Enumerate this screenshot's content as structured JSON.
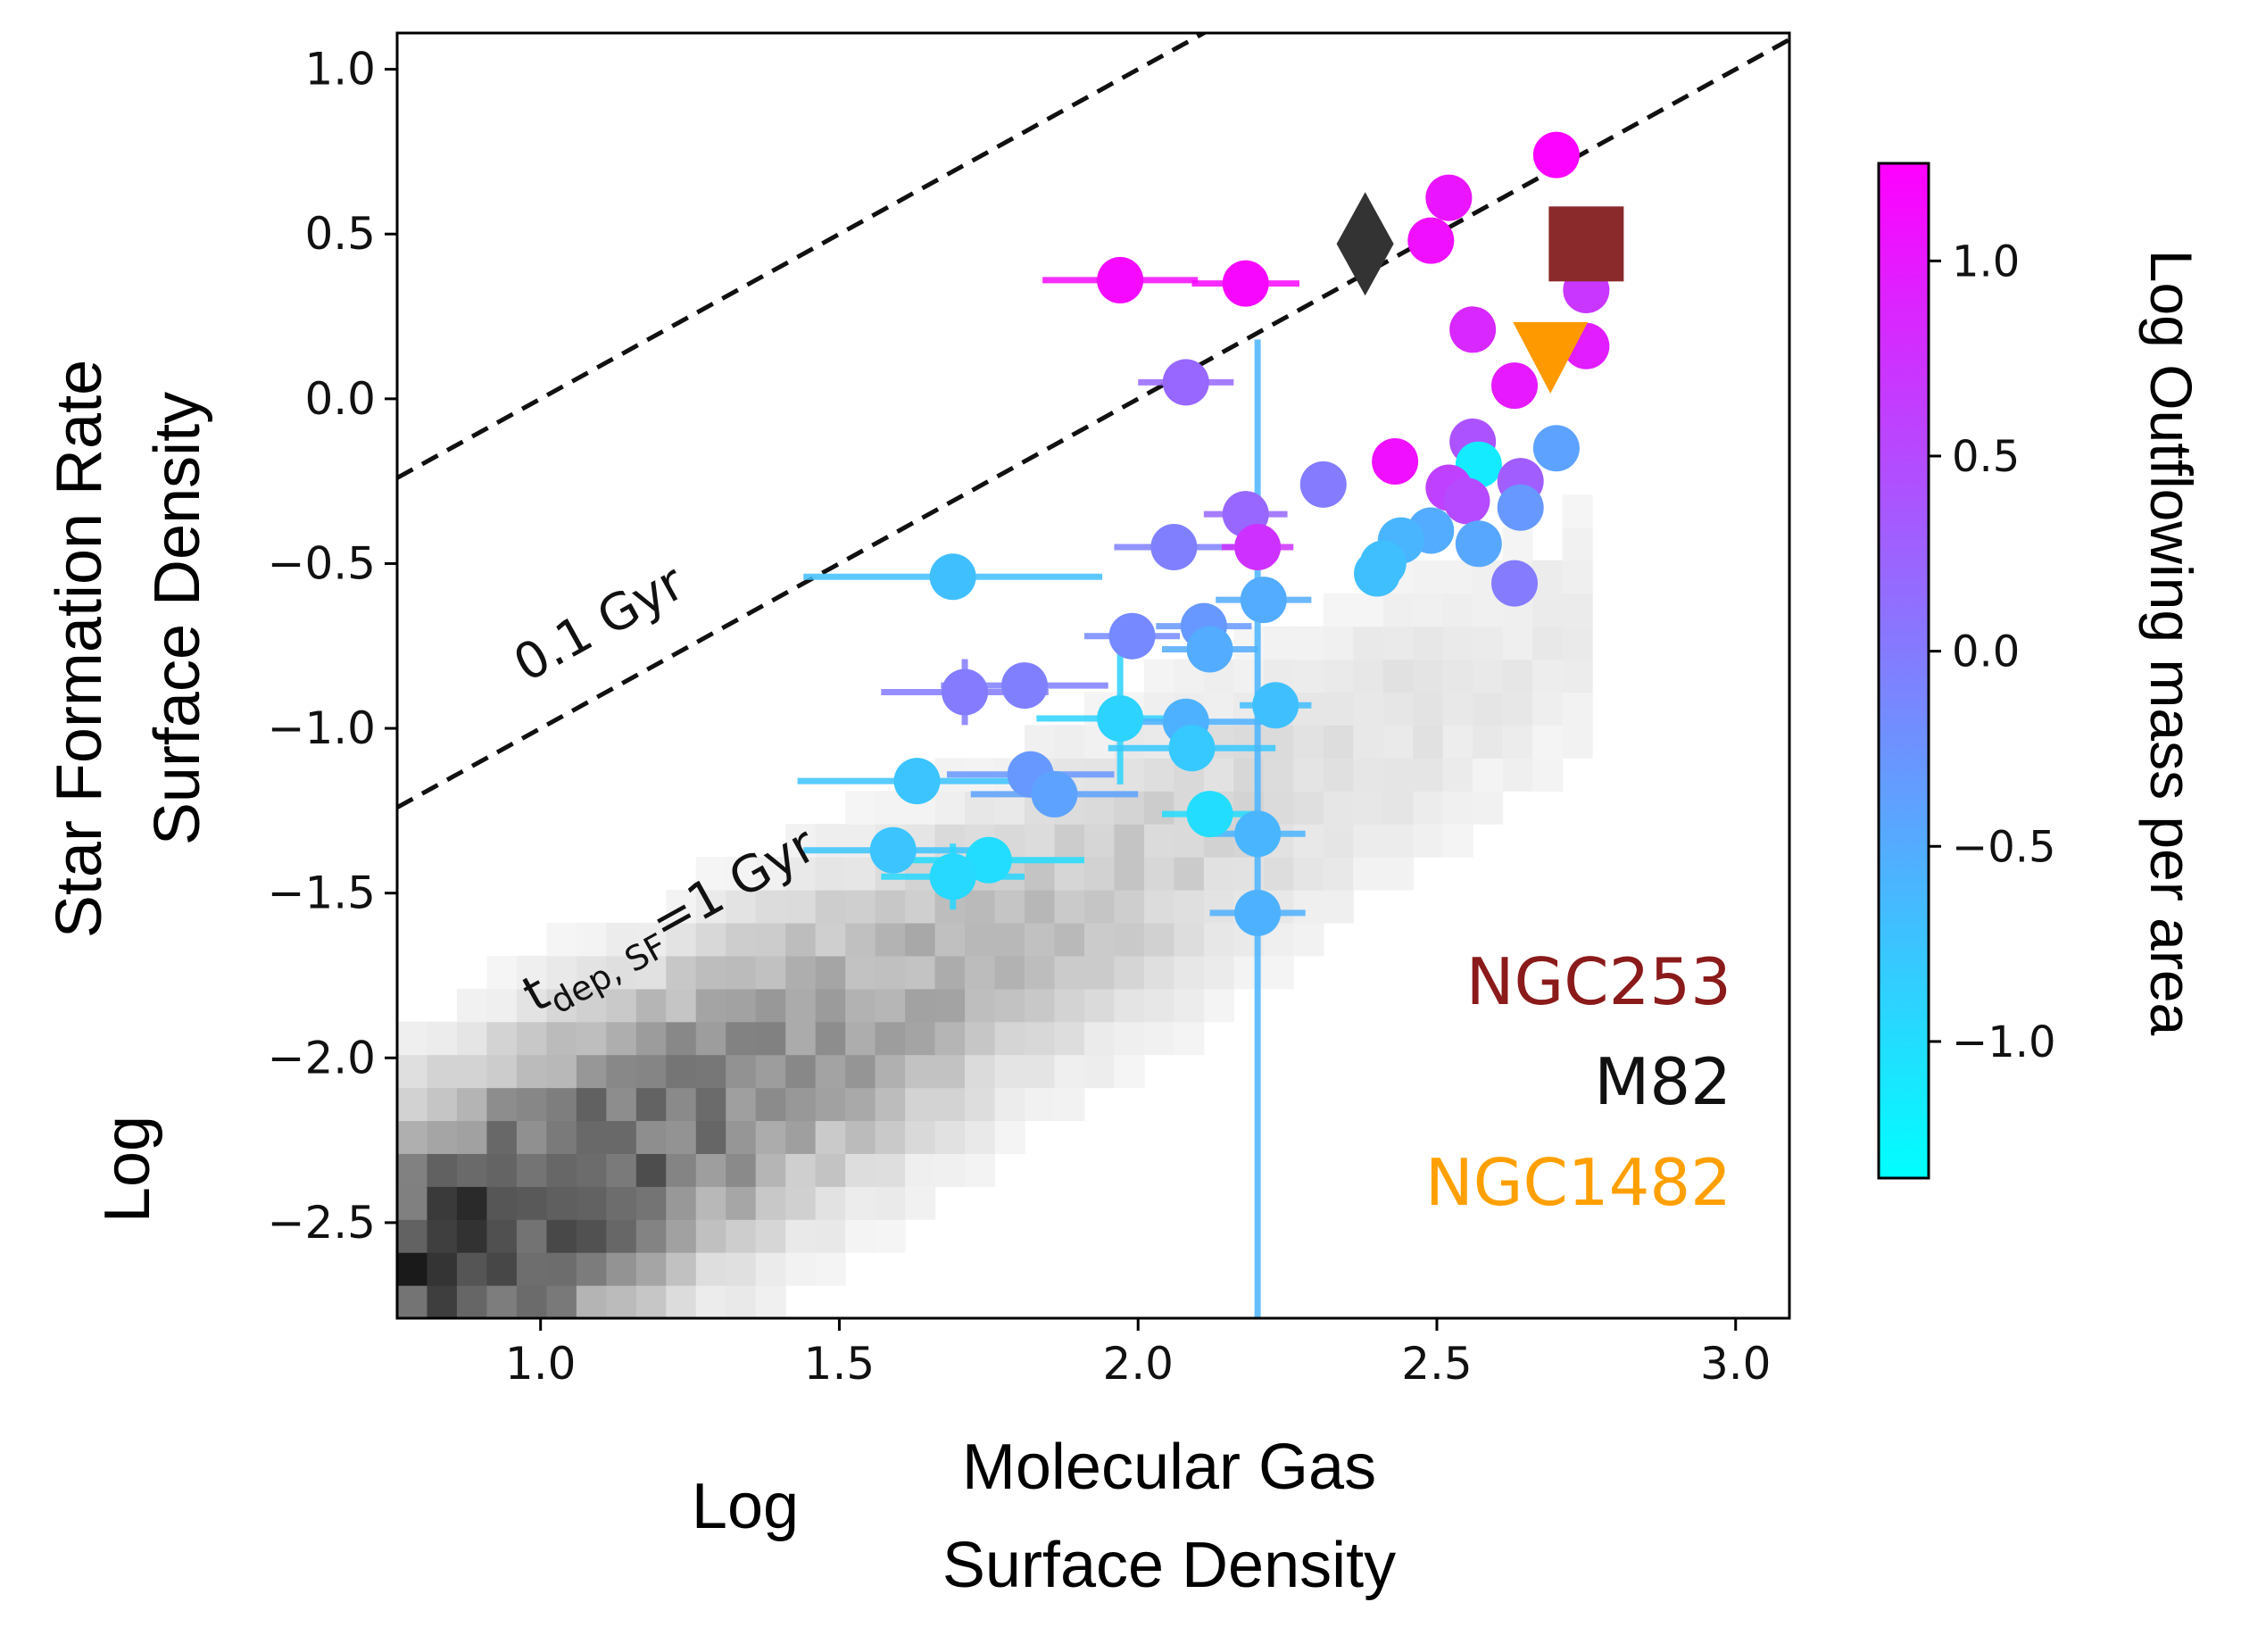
{
  "chart_data": {
    "type": "scatter",
    "xlabel": [
      "Log",
      "Molecular Gas",
      "Surface Density"
    ],
    "ylabel": [
      "Log",
      "Star Formation Rate",
      "Surface Density"
    ],
    "xlim": [
      0.76,
      3.09
    ],
    "ylim": [
      -2.79,
      1.11
    ],
    "xticks": [
      1.0,
      1.5,
      2.0,
      2.5,
      3.0
    ],
    "yticks": [
      1.0,
      0.5,
      0.0,
      -0.5,
      -1.0,
      -1.5,
      -2.0,
      -2.5
    ],
    "xticklabels": [
      "1.0",
      "1.5",
      "2.0",
      "2.5",
      "3.0"
    ],
    "yticklabels": [
      "1.0",
      "0.5",
      "0.0",
      "−0.5",
      "−1.0",
      "−1.5",
      "−2.0",
      "−2.5"
    ],
    "grid": false,
    "colorbar": {
      "label": "Log Outflowing mass per area",
      "range": [
        -1.35,
        1.25
      ],
      "ticks": [
        1.0,
        0.5,
        0.0,
        -0.5,
        -1.0
      ],
      "ticklabels": [
        "1.0",
        "0.5",
        "0.0",
        "−0.5",
        "−1.0"
      ],
      "colormap": "cool",
      "low_color": "#00ffff",
      "high_color": "#ff00ff"
    },
    "depletion_lines": [
      {
        "label": "0.1 Gyr",
        "offset": -1.0
      },
      {
        "label_main": "t",
        "label_sub": "dep, SF",
        "label_rest": "=1 Gyr",
        "offset": -2.0
      }
    ],
    "galaxies": [
      {
        "name": "NGC253",
        "marker": "square",
        "x": 2.75,
        "y": 0.47,
        "color": "#8b2a2a"
      },
      {
        "name": "M82",
        "marker": "diamond",
        "x": 2.38,
        "y": 0.47,
        "color": "#333333"
      },
      {
        "name": "NGC1482",
        "marker": "triangle-down",
        "x": 2.69,
        "y": 0.13,
        "color": "#ff9900"
      }
    ],
    "points": [
      {
        "x": 2.7,
        "y": 0.74,
        "c": 1.22
      },
      {
        "x": 2.52,
        "y": 0.61,
        "c": 1.05
      },
      {
        "x": 2.49,
        "y": 0.48,
        "c": 1.1
      },
      {
        "x": 1.97,
        "y": 0.36,
        "c": 1.15,
        "xerr": 0.13
      },
      {
        "x": 2.18,
        "y": 0.35,
        "c": 1.18,
        "xerr": 0.09
      },
      {
        "x": 2.75,
        "y": 0.33,
        "c": 0.7
      },
      {
        "x": 2.56,
        "y": 0.21,
        "c": 0.85
      },
      {
        "x": 2.75,
        "y": 0.16,
        "c": 0.95
      },
      {
        "x": 2.08,
        "y": 0.05,
        "c": 0.2,
        "xerr": 0.08
      },
      {
        "x": 2.63,
        "y": 0.04,
        "c": 1.0
      },
      {
        "x": 2.56,
        "y": -0.13,
        "c": 0.4
      },
      {
        "x": 2.7,
        "y": -0.15,
        "c": -0.4
      },
      {
        "x": 2.43,
        "y": -0.19,
        "c": 1.1
      },
      {
        "x": 2.57,
        "y": -0.2,
        "c": -1.15
      },
      {
        "x": 2.52,
        "y": -0.27,
        "c": 0.6
      },
      {
        "x": 2.31,
        "y": -0.26,
        "c": 0.0
      },
      {
        "x": 2.64,
        "y": -0.25,
        "c": 0.3
      },
      {
        "x": 2.55,
        "y": -0.31,
        "c": 0.5
      },
      {
        "x": 2.64,
        "y": -0.33,
        "c": -0.3
      },
      {
        "x": 2.18,
        "y": -0.35,
        "c": 0.2,
        "xerr": 0.07
      },
      {
        "x": 2.49,
        "y": -0.4,
        "c": -0.5
      },
      {
        "x": 2.44,
        "y": -0.43,
        "c": -0.6
      },
      {
        "x": 2.57,
        "y": -0.44,
        "c": -0.45
      },
      {
        "x": 2.06,
        "y": -0.45,
        "c": -0.05,
        "xerr": 0.1
      },
      {
        "x": 2.2,
        "y": -0.45,
        "c": 0.75,
        "xerr": 0.06
      },
      {
        "x": 2.41,
        "y": -0.5,
        "c": -0.7
      },
      {
        "x": 2.4,
        "y": -0.53,
        "c": -0.7
      },
      {
        "x": 1.69,
        "y": -0.54,
        "c": -0.7,
        "xerr": 0.25
      },
      {
        "x": 2.63,
        "y": -0.56,
        "c": 0.0
      },
      {
        "x": 2.21,
        "y": -0.61,
        "c": -0.5,
        "xerr": 0.08
      },
      {
        "x": 2.11,
        "y": -0.69,
        "c": -0.3,
        "xerr": 0.08
      },
      {
        "x": 1.99,
        "y": -0.72,
        "c": -0.15,
        "xerr": 0.08
      },
      {
        "x": 2.12,
        "y": -0.76,
        "c": -0.5,
        "xerr": 0.08
      },
      {
        "x": 1.71,
        "y": -0.89,
        "c": 0.0,
        "xerr": 0.14,
        "yerr": 0.1
      },
      {
        "x": 1.81,
        "y": -0.87,
        "c": -0.05,
        "xerr": 0.14
      },
      {
        "x": 2.23,
        "y": -0.93,
        "c": -0.7,
        "xerr": 0.06
      },
      {
        "x": 1.97,
        "y": -0.97,
        "c": -0.9,
        "xerr": 0.14,
        "yerr": 0.2
      },
      {
        "x": 2.08,
        "y": -0.98,
        "c": -0.55,
        "xerr": 0.14
      },
      {
        "x": 2.09,
        "y": -1.06,
        "c": -0.8,
        "xerr": 0.14
      },
      {
        "x": 1.63,
        "y": -1.16,
        "c": -0.75,
        "xerr": 0.2
      },
      {
        "x": 1.82,
        "y": -1.14,
        "c": -0.3,
        "xerr": 0.14
      },
      {
        "x": 1.86,
        "y": -1.2,
        "c": -0.4,
        "xerr": 0.14
      },
      {
        "x": 2.12,
        "y": -1.26,
        "c": -1.0,
        "xerr": 0.08
      },
      {
        "x": 2.2,
        "y": -1.32,
        "c": -0.6,
        "xerr": 0.08
      },
      {
        "x": 1.59,
        "y": -1.37,
        "c": -0.75,
        "xerr": 0.15
      },
      {
        "x": 1.75,
        "y": -1.4,
        "c": -1.0,
        "xerr": 0.16
      },
      {
        "x": 1.69,
        "y": -1.45,
        "c": -0.95,
        "xerr": 0.12,
        "yerr": 0.1
      },
      {
        "x": 2.2,
        "y": -1.56,
        "c": -0.55,
        "xerr": 0.08
      },
      {
        "x": 2.2,
        "y": -1.55,
        "c": -0.6,
        "yerr_low": 1.24,
        "yerr_high": 1.73,
        "hide_marker": true
      }
    ],
    "annotations": [
      "NGC253",
      "M82",
      "NGC1482"
    ]
  }
}
